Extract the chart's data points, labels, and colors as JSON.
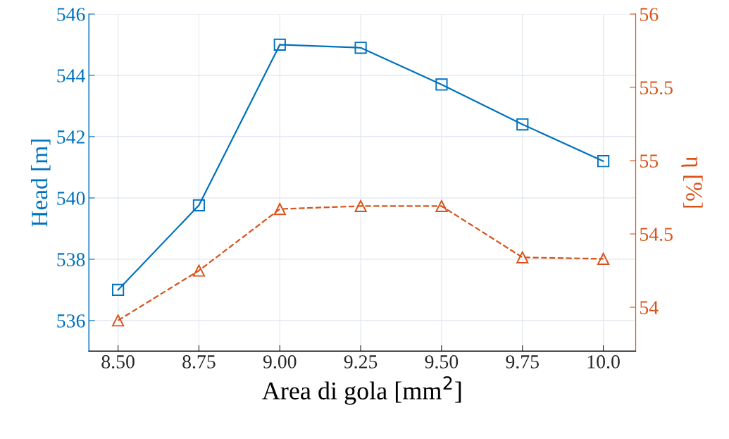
{
  "chart_data": {
    "type": "line",
    "xlabel": "Area di gola [mm$^{2}$]",
    "ylabel": "Head [m]",
    "y2label": "η [%]",
    "x": [
      8.5,
      8.75,
      9.0,
      9.25,
      9.5,
      9.75,
      10.0
    ],
    "series": [
      {
        "color": "#0072bd",
        "marker": "square",
        "line_style": "solid",
        "values": [
          537.0,
          539.76,
          545.0,
          544.9,
          543.7,
          542.4,
          541.2
        ]
      },
      {
        "color": "#d95319",
        "marker": "triangle",
        "line_style": "dashed",
        "axis": "y2",
        "values": [
          53.91,
          54.25,
          54.67,
          54.69,
          54.69,
          54.34,
          54.33
        ]
      }
    ],
    "xlim": [
      8.41,
      10.1
    ],
    "xticks": [
      {
        "value": 8.5,
        "label": "8.50"
      },
      {
        "value": 8.75,
        "label": "8.75"
      },
      {
        "value": 9.0,
        "label": "9.00"
      },
      {
        "value": 9.25,
        "label": "9.25"
      },
      {
        "value": 9.5,
        "label": "9.50"
      },
      {
        "value": 9.75,
        "label": "9.75"
      },
      {
        "value": 10.0,
        "label": "10.0"
      }
    ],
    "ylim": [
      535,
      546
    ],
    "yticks": [
      536,
      538,
      540,
      542,
      544,
      546
    ],
    "y2lim": [
      53.7,
      56
    ],
    "y2ticks": [
      54,
      54.5,
      55,
      55.5,
      56
    ],
    "grid": true
  }
}
